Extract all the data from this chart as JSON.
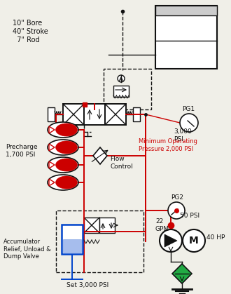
{
  "bg_color": "#f0efe8",
  "red": "#cc0000",
  "blue": "#0044cc",
  "green": "#007700",
  "black": "#111111",
  "white": "#ffffff",
  "gray": "#cccccc",
  "figsize": [
    3.3,
    4.19
  ],
  "dpi": 100,
  "labels": {
    "bore": "10\" Bore\n40\" Stroke\n  7\" Rod",
    "precharge": "Precharge\n1,700 PSI",
    "min_op": "Minimum Operating\nPressure 2,000 PSI",
    "pg1": "PG1",
    "pg1_val": "3,000\nPSI",
    "pg2": "PG2",
    "pg2_val": "50 PSI",
    "flow": "Flow\nControl",
    "accum": "Accumulator\nRelief, Unload &\nDump Valve",
    "set": "Set 3,000 PSI",
    "gpm": "22\nGPM",
    "hp": "40 HP"
  }
}
